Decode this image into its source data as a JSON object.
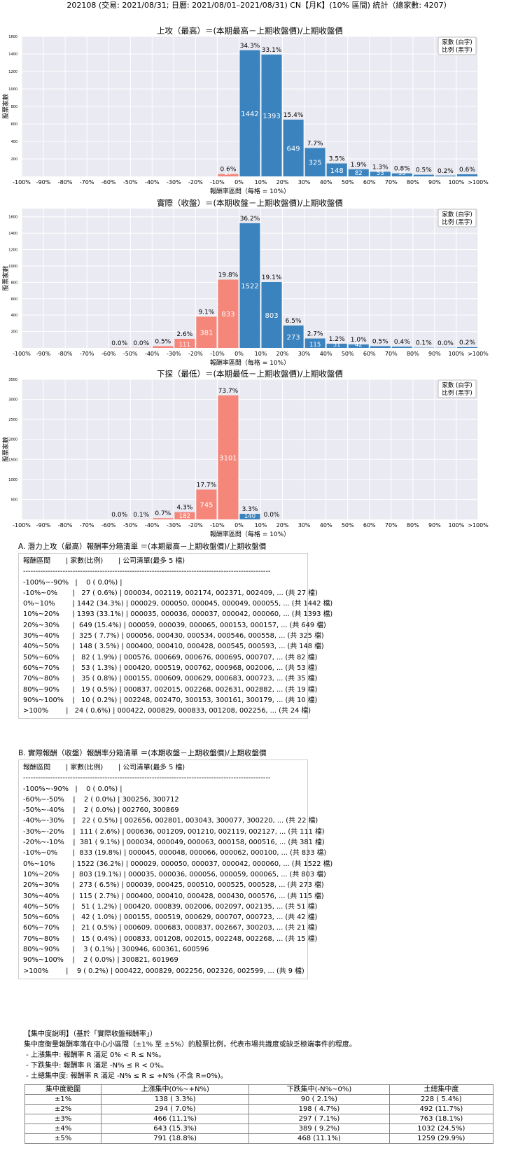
{
  "page_title": "202108 (交易: 2021/08/31; 日曆: 2021/08/01–2021/08/31) CN【月K】(10% 區間) 統計（總家數: 4207）",
  "legend_box": {
    "line1": "家數 (白字)",
    "line2": "比例 (黑字)"
  },
  "colors": {
    "up": "#3a83bf",
    "down": "#f4867a",
    "plot_bg": "#eaeaf2",
    "grid": "#ffffff"
  },
  "chart_data": [
    {
      "type": "bar",
      "title": "上攻（最高）＝(本期最高－上期收盤價)/上期收盤價",
      "xlabel": "報酬率區間（每格 = 10%）",
      "ylabel": "股票家數",
      "x_tick_labels": [
        "-100%",
        "-90%",
        "-80%",
        "-70%",
        "-60%",
        "-50%",
        "-40%",
        "-30%",
        "-20%",
        "-10%",
        "0%",
        "10%",
        "20%",
        "30%",
        "40%",
        "50%",
        "60%",
        "70%",
        "80%",
        "90%",
        "100%",
        ">100%"
      ],
      "ylim": [
        0,
        1600
      ],
      "y_ticks": [
        200,
        400,
        600,
        800,
        1000,
        1200,
        1400,
        1600
      ],
      "bins": [
        {
          "count": 27,
          "pct": "0.6%",
          "sign": "neg"
        },
        {
          "count": 1442,
          "pct": "34.3%",
          "sign": "pos"
        },
        {
          "count": 1393,
          "pct": "33.1%",
          "sign": "pos"
        },
        {
          "count": 649,
          "pct": "15.4%",
          "sign": "pos"
        },
        {
          "count": 325,
          "pct": "7.7%",
          "sign": "pos"
        },
        {
          "count": 148,
          "pct": "3.5%",
          "sign": "pos"
        },
        {
          "count": 82,
          "pct": "1.9%",
          "sign": "pos"
        },
        {
          "count": 53,
          "pct": "1.3%",
          "sign": "pos"
        },
        {
          "count": 35,
          "pct": "0.8%",
          "sign": "pos"
        },
        {
          "count": 19,
          "pct": "0.5%",
          "sign": "pos"
        },
        {
          "count": 10,
          "pct": "0.2%",
          "sign": "pos"
        },
        {
          "count": 24,
          "pct": "0.6%",
          "sign": "pos"
        }
      ],
      "bin_start": 9
    },
    {
      "type": "bar",
      "title": "實際（收盤）＝(本期收盤－上期收盤價)/上期收盤價",
      "xlabel": "報酬率區間（每格 = 10%）",
      "ylabel": "股票家數",
      "x_tick_labels": [
        "-100%",
        "-90%",
        "-80%",
        "-70%",
        "-60%",
        "-50%",
        "-40%",
        "-30%",
        "-20%",
        "-10%",
        "0%",
        "10%",
        "20%",
        "30%",
        "40%",
        "50%",
        "60%",
        "70%",
        "80%",
        "90%",
        "100%",
        ">100%"
      ],
      "ylim": [
        0,
        1700
      ],
      "y_ticks": [
        200,
        400,
        600,
        800,
        1000,
        1200,
        1400,
        1600
      ],
      "bins": [
        {
          "count": 2,
          "pct": "0.0%",
          "sign": "neg"
        },
        {
          "count": 2,
          "pct": "0.0%",
          "sign": "neg"
        },
        {
          "count": 22,
          "pct": "0.5%",
          "sign": "neg"
        },
        {
          "count": 111,
          "pct": "2.6%",
          "sign": "neg"
        },
        {
          "count": 381,
          "pct": "9.1%",
          "sign": "neg"
        },
        {
          "count": 833,
          "pct": "19.8%",
          "sign": "neg"
        },
        {
          "count": 1522,
          "pct": "36.2%",
          "sign": "pos"
        },
        {
          "count": 803,
          "pct": "19.1%",
          "sign": "pos"
        },
        {
          "count": 273,
          "pct": "6.5%",
          "sign": "pos"
        },
        {
          "count": 115,
          "pct": "2.7%",
          "sign": "pos"
        },
        {
          "count": 51,
          "pct": "1.2%",
          "sign": "pos"
        },
        {
          "count": 42,
          "pct": "1.0%",
          "sign": "pos"
        },
        {
          "count": 21,
          "pct": "0.5%",
          "sign": "pos"
        },
        {
          "count": 15,
          "pct": "0.4%",
          "sign": "pos"
        },
        {
          "count": 3,
          "pct": "0.1%",
          "sign": "pos"
        },
        {
          "count": 2,
          "pct": "0.0%",
          "sign": "pos"
        },
        {
          "count": 9,
          "pct": "0.2%",
          "sign": "pos"
        }
      ],
      "bin_start": 4
    },
    {
      "type": "bar",
      "title": "下探（最低）＝(本期最低－上期收盤價)/上期收盤價",
      "xlabel": "報酬率區間（每格 = 10%）",
      "ylabel": "股票家數",
      "x_tick_labels": [
        "-100%",
        "-90%",
        "-80%",
        "-70%",
        "-60%",
        "-50%",
        "-40%",
        "-30%",
        "-20%",
        "-10%",
        "0%",
        "10%",
        "20%",
        "30%",
        "40%",
        "50%",
        "60%",
        "70%",
        "80%",
        "90%",
        "100%",
        ">100%"
      ],
      "ylim": [
        0,
        3500
      ],
      "y_ticks": [
        500,
        1000,
        1500,
        2000,
        2500,
        3000,
        3500
      ],
      "bins": [
        {
          "count": 1,
          "pct": "0.0%",
          "sign": "neg"
        },
        {
          "count": 4,
          "pct": "0.1%",
          "sign": "neg"
        },
        {
          "count": 31,
          "pct": "0.7%",
          "sign": "neg"
        },
        {
          "count": 182,
          "pct": "4.3%",
          "sign": "neg"
        },
        {
          "count": 745,
          "pct": "17.7%",
          "sign": "neg"
        },
        {
          "count": 3101,
          "pct": "73.7%",
          "sign": "neg"
        },
        {
          "count": 140,
          "pct": "3.3%",
          "sign": "pos"
        },
        {
          "count": 1,
          "pct": "0.0%",
          "sign": "pos"
        }
      ],
      "bin_start": 4
    }
  ],
  "listing_a": {
    "title": "A. 潛力上攻（最高）報酬率分箱清單 ＝(本期最高－上期收盤價)/上期收盤價",
    "lines": [
      "報酬區間       | 家數(比例)       | 公司清單(最多 5 檔)",
      "----------------------------------------------------------------------------------------------------",
      "-100%~-90%   |    0 ( 0.0%) |",
      "-10%~0%       |   27 ( 0.6%) | 000034, 002119, 002174, 002371, 002409, ... (共 27 檔)",
      "0%~10%        | 1442 (34.3%) | 000029, 000050, 000045, 000049, 000055, ... (共 1442 檔)",
      "10%~20%      | 1393 (33.1%) | 000035, 000036, 000037, 000042, 000060, ... (共 1393 檔)",
      "20%~30%      |  649 (15.4%) | 000059, 000039, 000065, 000153, 000157, ... (共 649 檔)",
      "30%~40%      |  325 ( 7.7%) | 000056, 000430, 000534, 000546, 000558, ... (共 325 檔)",
      "40%~50%      |  148 ( 3.5%) | 000400, 000410, 000428, 000545, 000593, ... (共 148 檔)",
      "50%~60%      |   82 ( 1.9%) | 000576, 000669, 000676, 000695, 000707, ... (共 82 檔)",
      "60%~70%      |   53 ( 1.3%) | 000420, 000519, 000762, 000968, 002006, ... (共 53 檔)",
      "70%~80%      |   35 ( 0.8%) | 000155, 000609, 000629, 000683, 000723, ... (共 35 檔)",
      "80%~90%      |   19 ( 0.5%) | 000837, 002015, 002268, 002631, 002882, ... (共 19 檔)",
      "90%~100%    |   10 ( 0.2%) | 002248, 002470, 300153, 300161, 300179, ... (共 10 檔)",
      ">100%        |   24 ( 0.6%) | 000422, 000829, 000833, 001208, 002256, ... (共 24 檔)"
    ]
  },
  "listing_b": {
    "title": "B. 實際報酬（收盤）報酬率分箱清單 ＝(本期收盤－上期收盤價)/上期收盤價",
    "lines": [
      "報酬區間       | 家數(比例)       | 公司清單(最多 5 檔)",
      "----------------------------------------------------------------------------------------------------",
      "-100%~-90%   |    0 ( 0.0%) |",
      "-60%~-50%    |    2 ( 0.0%) | 300256, 300712",
      "-50%~-40%    |    2 ( 0.0%) | 002760, 300869",
      "-40%~-30%    |   22 ( 0.5%) | 002656, 002801, 003043, 300077, 300220, ... (共 22 檔)",
      "-30%~-20%    |  111 ( 2.6%) | 000636, 001209, 001210, 002119, 002127, ... (共 111 檔)",
      "-20%~-10%    |  381 ( 9.1%) | 000034, 000049, 000063, 000158, 000516, ... (共 381 檔)",
      "-10%~0%       |  833 (19.8%) | 000045, 000048, 000066, 000062, 000100, ... (共 833 檔)",
      "0%~10%        | 1522 (36.2%) | 000029, 000050, 000037, 000042, 000060, ... (共 1522 檔)",
      "10%~20%      |  803 (19.1%) | 000035, 000036, 000056, 000059, 000065, ... (共 803 檔)",
      "20%~30%      |  273 ( 6.5%) | 000039, 000425, 000510, 000525, 000528, ... (共 273 檔)",
      "30%~40%      |  115 ( 2.7%) | 000400, 000410, 000428, 000430, 000576, ... (共 115 檔)",
      "40%~50%      |   51 ( 1.2%) | 000420, 000839, 002006, 002097, 002135, ... (共 51 檔)",
      "50%~60%      |   42 ( 1.0%) | 000155, 000519, 000629, 000707, 000723, ... (共 42 檔)",
      "60%~70%      |   21 ( 0.5%) | 000609, 000683, 000837, 002667, 300203, ... (共 21 檔)",
      "70%~80%      |   15 ( 0.4%) | 000833, 001208, 002015, 002248, 002268, ... (共 15 檔)",
      "80%~90%      |    3 ( 0.1%) | 300946, 600361, 600596",
      "90%~100%    |    2 ( 0.0%) | 300821, 601969",
      ">100%        |    9 ( 0.2%) | 000422, 000829, 002256, 002326, 002599, ... (共 9 檔)"
    ]
  },
  "concentration": {
    "heading": "【集中度說明】（基於「實際收盤報酬率」）",
    "lines": [
      "集中度衡量報酬率落在中心小區間（±1% 至 ±5%）的股票比例，代表市場共識度或缺乏極端事件的程度。",
      " - 上漲集中: 報酬率 R 滿足 0% < R ≤ N%。",
      " - 下跌集中: 報酬率 R 滿足 -N% ≤ R < 0%。",
      " - 土總集中度: 報酬率 R 滿足 -N% ≤ R ≤ +N% (不含 R=0%)。"
    ],
    "headers": [
      "集中度範圍",
      "上漲集中(0%~+N%)",
      "下跌集中(-N%~0%)",
      "土總集中度"
    ],
    "rows": [
      [
        "±1%",
        "138 ( 3.3%)",
        "90 ( 2.1%)",
        "228 ( 5.4%)"
      ],
      [
        "±2%",
        "294 ( 7.0%)",
        "198 ( 4.7%)",
        "492 (11.7%)"
      ],
      [
        "±3%",
        "466 (11.1%)",
        "297 ( 7.1%)",
        "763 (18.1%)"
      ],
      [
        "±4%",
        "643 (15.3%)",
        "389 ( 9.2%)",
        "1032 (24.5%)"
      ],
      [
        "±5%",
        "791 (18.8%)",
        "468 (11.1%)",
        "1259 (29.9%)"
      ]
    ]
  }
}
